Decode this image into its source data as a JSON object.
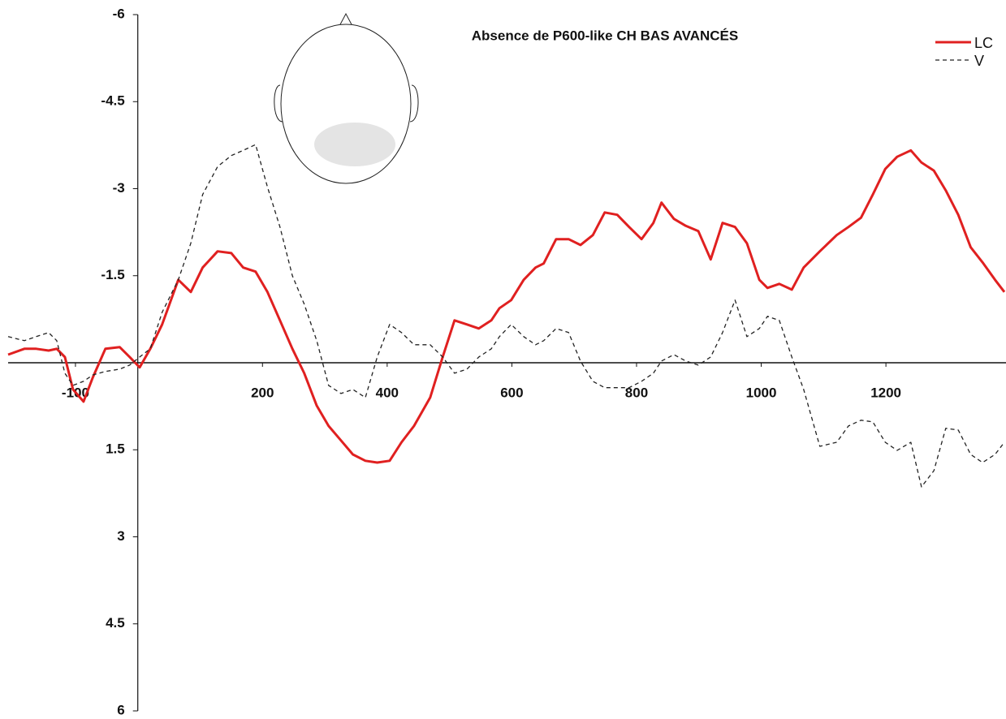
{
  "chart_data": {
    "type": "line",
    "title": "Absence de P600-like CH BAS AVANCÉS",
    "x": [
      -208,
      -182,
      -163,
      -143,
      -130,
      -117,
      -104,
      -87,
      -72,
      -52,
      -29,
      -13,
      3,
      20,
      39,
      65,
      85,
      104,
      128,
      150,
      169,
      189,
      208,
      228,
      248,
      267,
      287,
      306,
      326,
      345,
      365,
      384,
      404,
      423,
      443,
      469,
      489,
      508,
      528,
      547,
      567,
      580,
      599,
      619,
      638,
      651,
      671,
      691,
      710,
      730,
      749,
      769,
      788,
      808,
      827,
      840,
      860,
      879,
      899,
      919,
      938,
      958,
      977,
      997,
      1010,
      1029,
      1049,
      1068,
      1094,
      1121,
      1140,
      1160,
      1179,
      1199,
      1218,
      1240,
      1257,
      1277,
      1296,
      1316,
      1336,
      1355,
      1375,
      1390
    ],
    "series": [
      {
        "name": "LC",
        "color": "#e02020",
        "dashed": false,
        "values": [
          -0.14,
          -0.24,
          -0.24,
          -0.21,
          -0.24,
          -0.1,
          0.46,
          0.67,
          0.25,
          -0.24,
          -0.27,
          -0.1,
          0.08,
          -0.24,
          -0.66,
          -1.43,
          -1.22,
          -1.64,
          -1.92,
          -1.89,
          -1.64,
          -1.57,
          -1.22,
          -0.73,
          -0.24,
          0.18,
          0.74,
          1.09,
          1.34,
          1.58,
          1.69,
          1.72,
          1.69,
          1.37,
          1.09,
          0.6,
          -0.1,
          -0.73,
          -0.66,
          -0.59,
          -0.73,
          -0.94,
          -1.08,
          -1.43,
          -1.64,
          -1.71,
          -2.13,
          -2.13,
          -2.03,
          -2.2,
          -2.59,
          -2.55,
          -2.34,
          -2.13,
          -2.41,
          -2.76,
          -2.48,
          -2.36,
          -2.27,
          -1.78,
          -2.41,
          -2.34,
          -2.06,
          -1.43,
          -1.29,
          -1.36,
          -1.26,
          -1.64,
          -1.92,
          -2.2,
          -2.34,
          -2.5,
          -2.9,
          -3.34,
          -3.55,
          -3.66,
          -3.45,
          -3.31,
          -2.97,
          -2.55,
          -1.99,
          -1.73,
          -1.43,
          -1.22
        ]
      },
      {
        "name": "V",
        "color": "#222222",
        "dashed": true,
        "values": [
          -0.45,
          -0.38,
          -0.45,
          -0.52,
          -0.38,
          0.18,
          0.39,
          0.32,
          0.21,
          0.15,
          0.11,
          0.04,
          -0.1,
          -0.24,
          -0.87,
          -1.43,
          -2.06,
          -2.9,
          -3.38,
          -3.57,
          -3.66,
          -3.76,
          -3.03,
          -2.34,
          -1.5,
          -1.01,
          -0.38,
          0.39,
          0.53,
          0.46,
          0.6,
          -0.1,
          -0.66,
          -0.52,
          -0.31,
          -0.31,
          -0.1,
          0.18,
          0.11,
          -0.1,
          -0.24,
          -0.45,
          -0.66,
          -0.45,
          -0.31,
          -0.38,
          -0.59,
          -0.52,
          -0.03,
          0.32,
          0.43,
          0.43,
          0.43,
          0.32,
          0.18,
          -0.03,
          -0.14,
          -0.03,
          0.04,
          -0.1,
          -0.52,
          -1.08,
          -0.45,
          -0.59,
          -0.8,
          -0.73,
          -0.1,
          0.46,
          1.44,
          1.37,
          1.09,
          0.99,
          1.02,
          1.37,
          1.51,
          1.37,
          2.14,
          1.86,
          1.13,
          1.16,
          1.58,
          1.72,
          1.58,
          1.37
        ]
      }
    ],
    "xlim": [
      -208,
      1390
    ],
    "xticks": [
      -100,
      200,
      400,
      600,
      800,
      1000,
      1200
    ],
    "ylim": [
      -6,
      6
    ],
    "y_inverted": true,
    "yticks": [
      -6,
      -4.5,
      -3,
      -1.5,
      1.5,
      3,
      4.5,
      6
    ],
    "legend": "top-right"
  }
}
